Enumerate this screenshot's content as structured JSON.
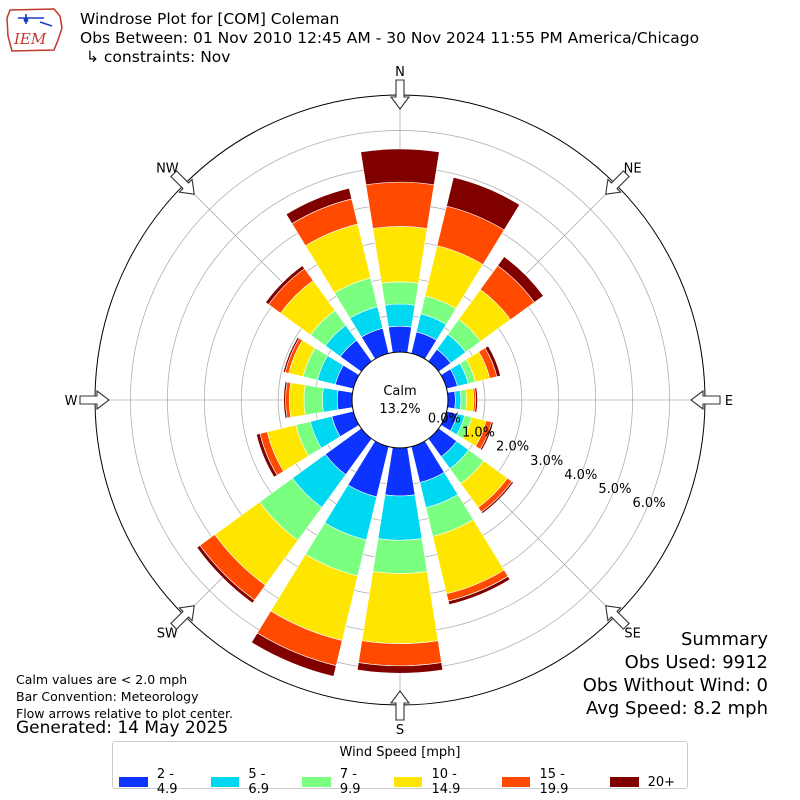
{
  "header": {
    "title_line1": "Windrose Plot for [COM] Coleman",
    "title_line2": "Obs Between: 01 Nov 2010 12:45 AM - 30 Nov 2024 11:55 PM America/Chicago",
    "title_line3": "↳ constraints: Nov",
    "logo_text": "IEM"
  },
  "notes": {
    "line1": "Calm values are < 2.0 mph",
    "line2": "Bar Convention: Meteorology",
    "line3": "Flow arrows relative to plot center.",
    "generated": "Generated: 14 May 2025"
  },
  "summary": {
    "title": "Summary",
    "obs_used": "Obs Used: 9912",
    "obs_without_wind": "Obs Without Wind: 0",
    "avg_speed": "Avg Speed: 8.2 mph"
  },
  "calm": {
    "label": "Calm",
    "value": "13.2%"
  },
  "chart_data": {
    "type": "windrose",
    "directions": [
      "N",
      "NNE",
      "NE",
      "ENE",
      "E",
      "ESE",
      "SE",
      "SSE",
      "S",
      "SSW",
      "SW",
      "WSW",
      "W",
      "WNW",
      "NW",
      "NNW"
    ],
    "compass_labels": [
      "N",
      "NE",
      "E",
      "SE",
      "S",
      "SW",
      "W",
      "NW"
    ],
    "ring_values": [
      0.0,
      1.0,
      2.0,
      3.0,
      4.0,
      5.0,
      6.0
    ],
    "ring_labels": [
      "0.0%",
      "1.0%",
      "2.0%",
      "3.0%",
      "4.0%",
      "5.0%",
      "6.0%"
    ],
    "rmax": 6.96,
    "legend_title": "Wind Speed [mph]",
    "bins": [
      {
        "label": "2 - 4.9",
        "color": "#0c33ff"
      },
      {
        "label": "5 - 6.9",
        "color": "#00d7f1"
      },
      {
        "label": "7 - 9.9",
        "color": "#7bff80"
      },
      {
        "label": "10 - 14.9",
        "color": "#ffe600"
      },
      {
        "label": "15 - 19.9",
        "color": "#ff4a00"
      },
      {
        "label": "20+",
        "color": "#800000"
      }
    ],
    "cumulative_pct": {
      "N": [
        0.7,
        1.3,
        1.9,
        3.4,
        4.6,
        5.5
      ],
      "NNE": [
        0.6,
        1.1,
        1.6,
        3.0,
        4.1,
        4.9
      ],
      "NE": [
        0.4,
        0.9,
        1.4,
        2.4,
        3.2,
        3.5
      ],
      "ENE": [
        0.3,
        0.6,
        0.8,
        1.2,
        1.4,
        1.5
      ],
      "E": [
        0.2,
        0.35,
        0.5,
        0.7,
        0.75,
        0.8
      ],
      "ESE": [
        0.3,
        0.5,
        0.7,
        1.1,
        1.25,
        1.3
      ],
      "SE": [
        0.6,
        1.0,
        1.5,
        2.3,
        2.45,
        2.5
      ],
      "SSE": [
        1.0,
        1.7,
        2.5,
        4.1,
        4.3,
        4.4
      ],
      "S": [
        1.3,
        2.5,
        3.4,
        5.3,
        5.9,
        6.1
      ],
      "SSW": [
        1.4,
        2.6,
        3.6,
        5.4,
        6.1,
        6.4
      ],
      "SW": [
        1.2,
        2.3,
        3.4,
        4.9,
        5.4,
        5.5
      ],
      "WSW": [
        0.6,
        1.2,
        1.6,
        2.4,
        2.6,
        2.7
      ],
      "W": [
        0.4,
        0.8,
        1.3,
        1.7,
        1.8,
        1.85
      ],
      "WNW": [
        0.5,
        1.0,
        1.4,
        1.8,
        1.9,
        1.95
      ],
      "NW": [
        0.7,
        1.2,
        1.7,
        2.7,
        3.1,
        3.2
      ],
      "NNW": [
        0.7,
        1.3,
        2.1,
        3.6,
        4.3,
        4.6
      ]
    }
  }
}
